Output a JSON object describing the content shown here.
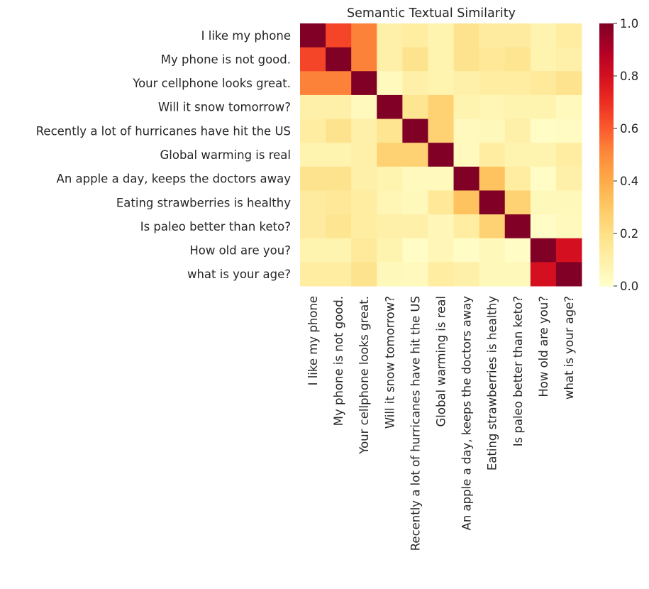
{
  "chart_data": {
    "type": "heatmap",
    "title": "Semantic Textual Similarity",
    "colormap": "YlOrRd",
    "vmin": 0.0,
    "vmax": 1.0,
    "colorbar_ticks": [
      "0.0",
      "0.2",
      "0.4",
      "0.6",
      "0.8",
      "1.0"
    ],
    "colorbar_position": "right",
    "labels": [
      "I like my phone",
      "My phone is not good.",
      "Your cellphone looks great.",
      "Will it snow tomorrow?",
      "Recently a lot of hurricanes have hit the US",
      "Global warming is real",
      "An apple a day, keeps the doctors away",
      "Eating strawberries is healthy",
      "Is paleo better than keto?",
      "How old are you?",
      "what is your age?"
    ],
    "values": [
      [
        1.0,
        0.65,
        0.52,
        0.1,
        0.12,
        0.08,
        0.18,
        0.13,
        0.13,
        0.08,
        0.12
      ],
      [
        0.65,
        1.0,
        0.52,
        0.1,
        0.18,
        0.08,
        0.18,
        0.15,
        0.17,
        0.08,
        0.1
      ],
      [
        0.52,
        0.52,
        1.0,
        0.04,
        0.1,
        0.08,
        0.1,
        0.12,
        0.12,
        0.14,
        0.18
      ],
      [
        0.1,
        0.1,
        0.04,
        1.0,
        0.17,
        0.26,
        0.08,
        0.07,
        0.08,
        0.08,
        0.04
      ],
      [
        0.12,
        0.18,
        0.1,
        0.17,
        1.0,
        0.26,
        0.04,
        0.05,
        0.1,
        0.02,
        0.03
      ],
      [
        0.08,
        0.08,
        0.1,
        0.26,
        0.26,
        1.0,
        0.04,
        0.12,
        0.08,
        0.08,
        0.12
      ],
      [
        0.18,
        0.18,
        0.1,
        0.08,
        0.04,
        0.04,
        1.0,
        0.32,
        0.12,
        0.02,
        0.1
      ],
      [
        0.13,
        0.15,
        0.12,
        0.07,
        0.05,
        0.15,
        0.32,
        1.0,
        0.26,
        0.05,
        0.05
      ],
      [
        0.13,
        0.17,
        0.12,
        0.1,
        0.1,
        0.06,
        0.12,
        0.26,
        1.0,
        0.02,
        0.04
      ],
      [
        0.08,
        0.08,
        0.14,
        0.08,
        0.02,
        0.06,
        0.02,
        0.05,
        0.02,
        1.0,
        0.8
      ],
      [
        0.12,
        0.12,
        0.18,
        0.05,
        0.04,
        0.12,
        0.1,
        0.05,
        0.05,
        0.8,
        1.0
      ]
    ]
  }
}
